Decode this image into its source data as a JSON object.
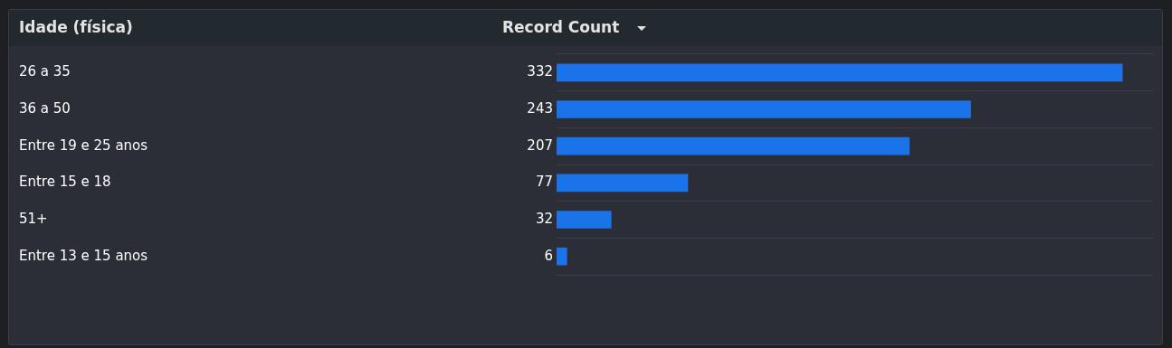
{
  "chart_data": {
    "type": "bar",
    "orientation": "horizontal",
    "ylabel": "Idade (física)",
    "xlabel": "Record Count",
    "categories": [
      "26 a 35",
      "36 a 50",
      "Entre 19 e 25 anos",
      "Entre 15 e 18",
      "51+",
      "Entre 13 e 15 anos"
    ],
    "values": [
      332,
      243,
      207,
      77,
      32,
      6
    ],
    "color": "#1a73e8",
    "data_labels": true,
    "grid": "y"
  }
}
